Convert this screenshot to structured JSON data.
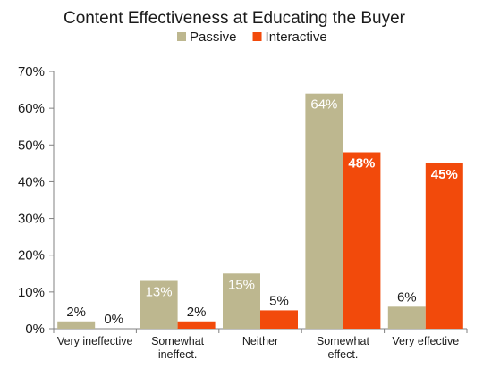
{
  "chart_data": {
    "type": "bar",
    "title": "Content Effectiveness at Educating the Buyer",
    "xlabel": "",
    "ylabel": "",
    "categories": [
      [
        "Very ineffective"
      ],
      [
        "Somewhat",
        "ineffect."
      ],
      [
        "Neither"
      ],
      [
        "Somewhat",
        "effect."
      ],
      [
        "Very effective"
      ]
    ],
    "series": [
      {
        "name": "Passive",
        "color": "#bdb78f",
        "values": [
          2,
          13,
          15,
          64,
          6
        ],
        "labels": [
          "2%",
          "13%",
          "15%",
          "64%",
          "6%"
        ]
      },
      {
        "name": "Interactive",
        "color": "#f24a0b",
        "values": [
          0,
          2,
          5,
          48,
          45
        ],
        "labels": [
          "0%",
          "2%",
          "5%",
          "48%",
          "45%"
        ]
      }
    ],
    "ylim": [
      0,
      70
    ],
    "yticks": [
      0,
      10,
      20,
      30,
      40,
      50,
      60,
      70
    ],
    "ytick_labels": [
      "0%",
      "10%",
      "20%",
      "30%",
      "40%",
      "50%",
      "60%",
      "70%"
    ],
    "legend_position": "top-center",
    "grid": false
  }
}
